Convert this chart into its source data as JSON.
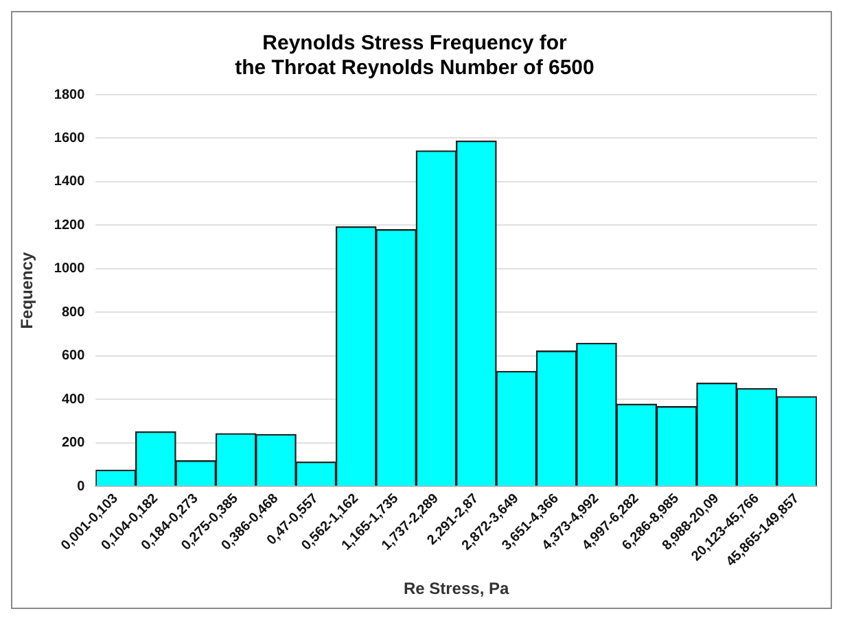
{
  "chart_data": {
    "type": "bar",
    "title": [
      "Reynolds Stress Frequency for",
      "the Throat Reynolds Number of 6500"
    ],
    "xlabel": "Re Stress, Pa",
    "ylabel": "Fequency",
    "categories": [
      "0,001-0,103",
      "0,104-0,182",
      "0,184-0,273",
      "0,275-0,385",
      "0,386-0,468",
      "0,47-0,557",
      "0,562-1,162",
      "1,165-1,735",
      "1,737-2,289",
      "2,291-2,87",
      "2,872-3,649",
      "3,651-4,366",
      "4,373-4,992",
      "4,997-6,282",
      "6,286-8,985",
      "8,988-20,09",
      "20,123-45,766",
      "45,865-149,857"
    ],
    "values": [
      75,
      251,
      118,
      243,
      239,
      112,
      1193,
      1180,
      1542,
      1587,
      529,
      622,
      658,
      378,
      367,
      475,
      450,
      413
    ],
    "color": "#00ffff",
    "ylim": [
      0,
      1800
    ],
    "yticks": [
      0,
      200,
      400,
      600,
      800,
      1000,
      1200,
      1400,
      1600,
      1800
    ],
    "grid": "y",
    "legend": false
  }
}
